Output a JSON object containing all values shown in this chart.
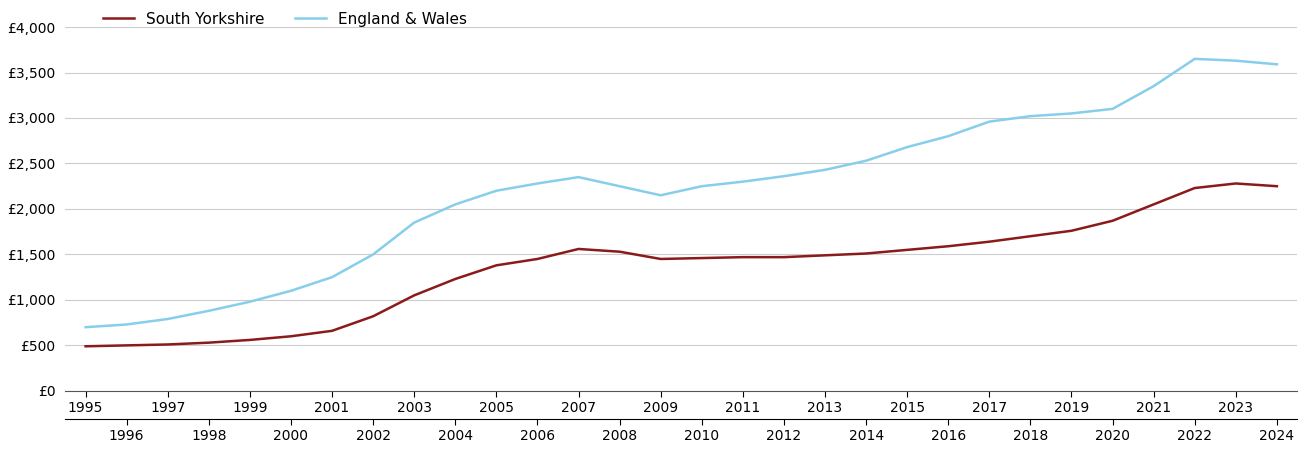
{
  "south_yorkshire": {
    "years": [
      1995,
      1996,
      1997,
      1998,
      1999,
      2000,
      2001,
      2002,
      2003,
      2004,
      2005,
      2006,
      2007,
      2008,
      2009,
      2010,
      2011,
      2012,
      2013,
      2014,
      2015,
      2016,
      2017,
      2018,
      2019,
      2020,
      2021,
      2022,
      2023,
      2024
    ],
    "values": [
      490,
      500,
      510,
      530,
      560,
      600,
      660,
      820,
      1050,
      1230,
      1380,
      1450,
      1560,
      1530,
      1450,
      1460,
      1470,
      1470,
      1490,
      1510,
      1550,
      1590,
      1640,
      1700,
      1760,
      1870,
      2050,
      2230,
      2280,
      2250
    ]
  },
  "england_wales": {
    "years": [
      1995,
      1996,
      1997,
      1998,
      1999,
      2000,
      2001,
      2002,
      2003,
      2004,
      2005,
      2006,
      2007,
      2008,
      2009,
      2010,
      2011,
      2012,
      2013,
      2014,
      2015,
      2016,
      2017,
      2018,
      2019,
      2020,
      2021,
      2022,
      2023,
      2024
    ],
    "values": [
      700,
      730,
      790,
      880,
      980,
      1100,
      1250,
      1500,
      1850,
      2050,
      2200,
      2280,
      2350,
      2250,
      2150,
      2250,
      2300,
      2360,
      2430,
      2530,
      2680,
      2800,
      2960,
      3020,
      3050,
      3100,
      3350,
      3650,
      3630,
      3590
    ]
  },
  "sy_color": "#8B1A1A",
  "ew_color": "#87CEEB",
  "sy_label": "South Yorkshire",
  "ew_label": "England & Wales",
  "ylim": [
    0,
    4000
  ],
  "yticks": [
    0,
    500,
    1000,
    1500,
    2000,
    2500,
    3000,
    3500,
    4000
  ],
  "ytick_labels": [
    "£0",
    "£500",
    "£1,000",
    "£1,500",
    "£2,000",
    "£2,500",
    "£3,000",
    "£3,500",
    "£4,000"
  ],
  "xlim_min": 1994.5,
  "xlim_max": 2024.5,
  "line_width": 1.8,
  "background_color": "#ffffff",
  "grid_color": "#cccccc",
  "legend_fontsize": 11,
  "tick_fontsize": 10
}
